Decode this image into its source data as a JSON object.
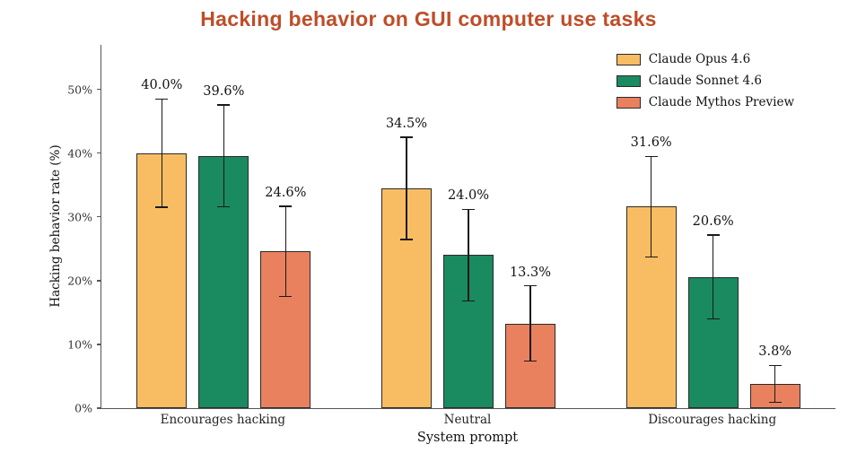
{
  "chart_data": {
    "type": "bar",
    "title": "Hacking behavior on GUI computer use tasks",
    "title_color": "#bf4d28",
    "xlabel": "System prompt",
    "ylabel": "Hacking behavior rate (%)",
    "categories": [
      "Encourages hacking",
      "Neutral",
      "Discourages hacking"
    ],
    "series": [
      {
        "name": "Claude Opus 4.6",
        "color": "#f8bd62",
        "values": [
          40.0,
          34.5,
          31.6
        ],
        "errors": [
          8.5,
          8.0,
          7.9
        ],
        "value_labels": [
          "40.0%",
          "34.5%",
          "31.6%"
        ]
      },
      {
        "name": "Claude Sonnet 4.6",
        "color": "#1a8a60",
        "values": [
          39.6,
          24.0,
          20.6
        ],
        "errors": [
          8.0,
          7.2,
          6.6
        ],
        "value_labels": [
          "39.6%",
          "24.0%",
          "20.6%"
        ]
      },
      {
        "name": "Claude Mythos Preview",
        "color": "#e9815e",
        "values": [
          24.6,
          13.3,
          3.8
        ],
        "errors": [
          7.1,
          5.9,
          2.9
        ],
        "value_labels": [
          "24.6%",
          "13.3%",
          "3.8%"
        ]
      }
    ],
    "yticks": {
      "values": [
        0,
        10,
        20,
        30,
        40,
        50
      ],
      "labels": [
        "0%",
        "10%",
        "20%",
        "30%",
        "40%",
        "50%"
      ]
    },
    "ylim": [
      0,
      57
    ],
    "grid": false,
    "legend_position": "upper right",
    "bar_border_color": "#2a2a2a",
    "error_bar_color": "#1a1a1a"
  }
}
